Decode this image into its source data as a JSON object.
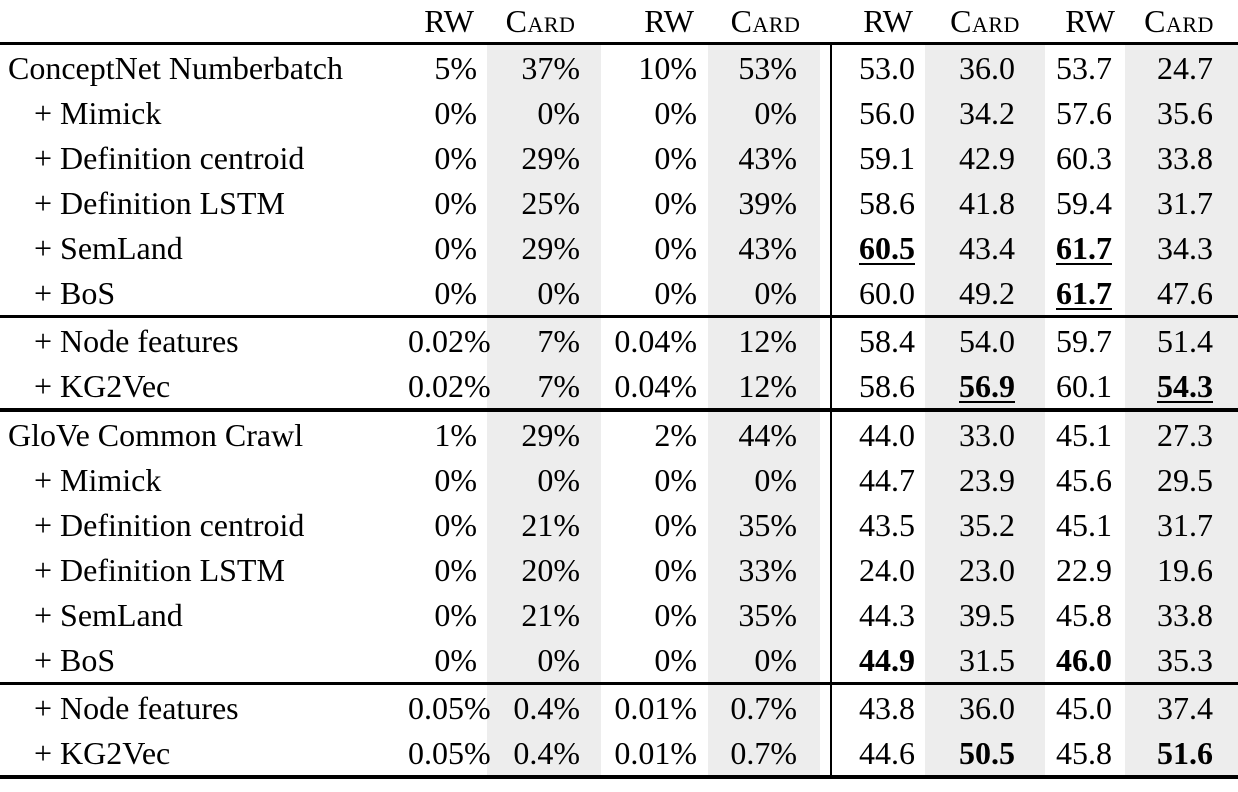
{
  "table": {
    "header": {
      "cols": [
        "RW",
        "Card",
        "RW",
        "Card",
        "RW",
        "Card",
        "RW",
        "Card"
      ]
    },
    "rows": [
      {
        "label": "ConceptNet Numberbatch",
        "c": [
          "5%",
          "37%",
          "10%",
          "53%",
          "53.0",
          "36.0",
          "53.7",
          "24.7"
        ]
      },
      {
        "label": "+ Mimick",
        "c": [
          "0%",
          "0%",
          "0%",
          "0%",
          "56.0",
          "34.2",
          "57.6",
          "35.6"
        ]
      },
      {
        "label": "+ Definition centroid",
        "c": [
          "0%",
          "29%",
          "0%",
          "43%",
          "59.1",
          "42.9",
          "60.3",
          "33.8"
        ]
      },
      {
        "label": "+ Definition LSTM",
        "c": [
          "0%",
          "25%",
          "0%",
          "39%",
          "58.6",
          "41.8",
          "59.4",
          "31.7"
        ]
      },
      {
        "label": "+ SemLand",
        "c": [
          "0%",
          "29%",
          "0%",
          "43%",
          "60.5",
          "43.4",
          "61.7",
          "34.3"
        ]
      },
      {
        "label": "+ BoS",
        "c": [
          "0%",
          "0%",
          "0%",
          "0%",
          "60.0",
          "49.2",
          "61.7",
          "47.6"
        ]
      },
      {
        "label": "+ Node features",
        "c": [
          "0.02%",
          "7%",
          "0.04%",
          "12%",
          "58.4",
          "54.0",
          "59.7",
          "51.4"
        ]
      },
      {
        "label": "+ KG2Vec",
        "c": [
          "0.02%",
          "7%",
          "0.04%",
          "12%",
          "58.6",
          "56.9",
          "60.1",
          "54.3"
        ]
      },
      {
        "label": "GloVe Common Crawl",
        "c": [
          "1%",
          "29%",
          "2%",
          "44%",
          "44.0",
          "33.0",
          "45.1",
          "27.3"
        ]
      },
      {
        "label": "+ Mimick",
        "c": [
          "0%",
          "0%",
          "0%",
          "0%",
          "44.7",
          "23.9",
          "45.6",
          "29.5"
        ]
      },
      {
        "label": "+ Definition centroid",
        "c": [
          "0%",
          "21%",
          "0%",
          "35%",
          "43.5",
          "35.2",
          "45.1",
          "31.7"
        ]
      },
      {
        "label": "+ Definition LSTM",
        "c": [
          "0%",
          "20%",
          "0%",
          "33%",
          "24.0",
          "23.0",
          "22.9",
          "19.6"
        ]
      },
      {
        "label": "+ SemLand",
        "c": [
          "0%",
          "21%",
          "0%",
          "35%",
          "44.3",
          "39.5",
          "45.8",
          "33.8"
        ]
      },
      {
        "label": "+ BoS",
        "c": [
          "0%",
          "0%",
          "0%",
          "0%",
          "44.9",
          "31.5",
          "46.0",
          "35.3"
        ]
      },
      {
        "label": "+ Node features",
        "c": [
          "0.05%",
          "0.4%",
          "0.01%",
          "0.7%",
          "43.8",
          "36.0",
          "45.0",
          "37.4"
        ]
      },
      {
        "label": "+ KG2Vec",
        "c": [
          "0.05%",
          "0.4%",
          "0.01%",
          "0.7%",
          "44.6",
          "50.5",
          "45.8",
          "51.6"
        ]
      }
    ],
    "colors": {
      "stripe": "#EDEDED",
      "rule": "#000000"
    }
  }
}
